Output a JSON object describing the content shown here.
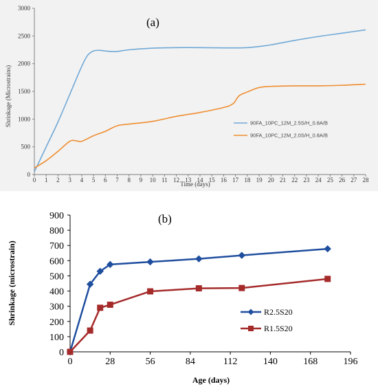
{
  "chart_data": [
    {
      "panel_label": "(a)",
      "type": "line",
      "xlabel": "Time (days)",
      "ylabel": "Shrinkage (Microstrains)",
      "xlim": [
        0,
        28
      ],
      "ylim": [
        0,
        3000
      ],
      "x_ticks": [
        "0",
        "1",
        "2",
        "3",
        "4",
        "5",
        "6",
        "7",
        "8",
        "9",
        "10",
        "11",
        "12",
        "13",
        "14",
        "15",
        "16",
        "17",
        "18",
        "19",
        "20",
        "21",
        "22",
        "23",
        "24",
        "25",
        "26",
        "27",
        "28"
      ],
      "y_ticks": [
        "0",
        "500",
        "1000",
        "1500",
        "2000",
        "2500",
        "3000"
      ],
      "grid": false,
      "legend_position": "right",
      "series": [
        {
          "name": "90FA_10PC_12M_2.5S/H_0.8A/B",
          "color": "#6fa8d6",
          "x": [
            0,
            1,
            2,
            3,
            4,
            4.5,
            5,
            5.5,
            6,
            6.5,
            7,
            8,
            10,
            12,
            14,
            16,
            17,
            18,
            19,
            20,
            22,
            24,
            26,
            28
          ],
          "y": [
            50,
            500,
            950,
            1450,
            1950,
            2150,
            2230,
            2240,
            2230,
            2220,
            2220,
            2250,
            2280,
            2290,
            2290,
            2285,
            2285,
            2290,
            2310,
            2340,
            2420,
            2490,
            2550,
            2610
          ]
        },
        {
          "name": "90FA_10PC_12M_2.0S/H_0.8A/B",
          "color": "#ef8c2e",
          "x": [
            0,
            1,
            2,
            3,
            3.5,
            4,
            5,
            6,
            7,
            8,
            10,
            12,
            14,
            16,
            16.8,
            17.3,
            18,
            19,
            20,
            22,
            24,
            26,
            28
          ],
          "y": [
            120,
            250,
            420,
            600,
            610,
            600,
            700,
            780,
            880,
            910,
            960,
            1050,
            1120,
            1210,
            1280,
            1420,
            1490,
            1570,
            1590,
            1600,
            1600,
            1610,
            1630
          ]
        }
      ]
    },
    {
      "panel_label": "(b)",
      "type": "line",
      "xlabel": "Age (days)",
      "ylabel": "Shrinkage (microstrain)",
      "xlim": [
        0,
        196
      ],
      "ylim": [
        0,
        900
      ],
      "x_ticks": [
        "0",
        "28",
        "56",
        "84",
        "112",
        "140",
        "168",
        "196"
      ],
      "y_ticks": [
        "0",
        "100",
        "200",
        "300",
        "400",
        "500",
        "600",
        "700",
        "800",
        "900"
      ],
      "grid": false,
      "legend_position": "right",
      "series": [
        {
          "name": "R2.5S20",
          "color": "#1f4e9e",
          "marker": "diamond",
          "x": [
            0,
            14,
            21,
            28,
            56,
            90,
            120,
            180
          ],
          "y": [
            0,
            445,
            530,
            575,
            592,
            612,
            635,
            678
          ]
        },
        {
          "name": "R1.5S20",
          "color": "#a52a2a",
          "marker": "square",
          "x": [
            0,
            14,
            21,
            28,
            56,
            90,
            120,
            180
          ],
          "y": [
            0,
            140,
            290,
            310,
            398,
            418,
            420,
            480
          ]
        }
      ]
    }
  ]
}
